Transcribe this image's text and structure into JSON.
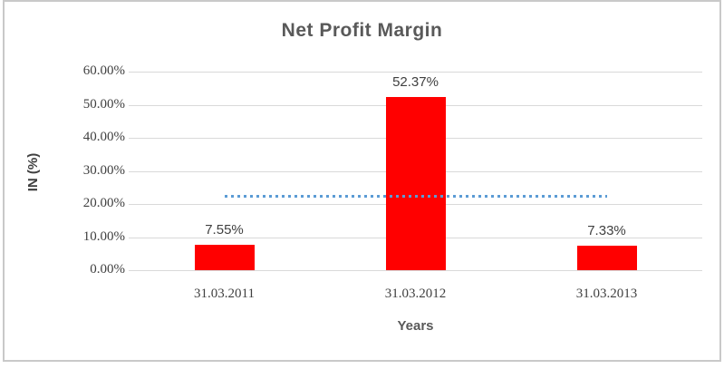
{
  "title": "Net Profit Margin",
  "chart_data": {
    "type": "bar",
    "title": "Net Profit Margin",
    "xlabel": "Years",
    "ylabel": "IN (%)",
    "categories": [
      "31.03.2011",
      "31.03.2012",
      "31.03.2013"
    ],
    "values": [
      7.55,
      52.37,
      7.33
    ],
    "data_labels": [
      "7.55%",
      "52.37%",
      "7.33%"
    ],
    "ylim": [
      0,
      60
    ],
    "ytick_labels": [
      "60.00%",
      "50.00%",
      "40.00%",
      "30.00%",
      "20.00%",
      "10.00%",
      "0.00%"
    ],
    "grid": true,
    "legend": "none",
    "bar_color": "#ff0000",
    "gridline_color": "#d9d9d9",
    "reference_line": {
      "value": 22.42,
      "style": "dotted",
      "color": "#5b9bd5",
      "description": "average of series, spans first to last bar center"
    }
  },
  "colors": {
    "title_text": "#595959",
    "axis_text": "#404040",
    "frame_border": "#c9c9c9",
    "background": "#ffffff"
  }
}
